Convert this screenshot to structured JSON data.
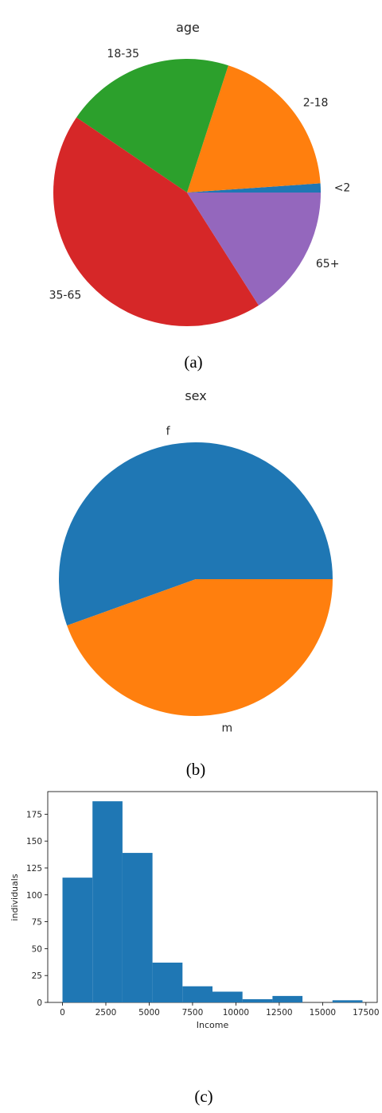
{
  "chart_data": [
    {
      "type": "pie",
      "title": "age",
      "caption": "(a)",
      "labels": [
        "<2",
        "2-18",
        "18-35",
        "35-65",
        "65+"
      ],
      "values": [
        1.1,
        18.9,
        20.5,
        43.5,
        16.0
      ],
      "colors": [
        "#1f77b4",
        "#ff7f0e",
        "#2ca02c",
        "#d62728",
        "#9467bd"
      ]
    },
    {
      "type": "pie",
      "title": "sex",
      "caption": "(b)",
      "labels": [
        "f",
        "m"
      ],
      "values": [
        55.5,
        44.5
      ],
      "colors": [
        "#1f77b4",
        "#ff7f0e"
      ]
    },
    {
      "type": "bar",
      "caption": "(c)",
      "xlabel": "Income",
      "ylabel": "individuals",
      "bin_edges": [
        0,
        1730,
        3460,
        5190,
        6920,
        8650,
        10380,
        12110,
        13840,
        15570,
        17300
      ],
      "values": [
        116,
        187,
        139,
        37,
        15,
        10,
        3,
        6,
        0,
        2
      ],
      "xlim": [
        -850,
        18150
      ],
      "ylim": [
        0,
        196
      ],
      "xticks": [
        0,
        2500,
        5000,
        7500,
        10000,
        12500,
        15000,
        17500
      ],
      "xtick_labels": [
        "0",
        "2500",
        "5000",
        "7500",
        "10000",
        "12500",
        "15000",
        "17500"
      ],
      "yticks": [
        0,
        25,
        50,
        75,
        100,
        125,
        150,
        175
      ],
      "ytick_labels": [
        "0",
        "25",
        "50",
        "75",
        "100",
        "125",
        "150",
        "175"
      ],
      "color": "#1f77b4"
    }
  ]
}
